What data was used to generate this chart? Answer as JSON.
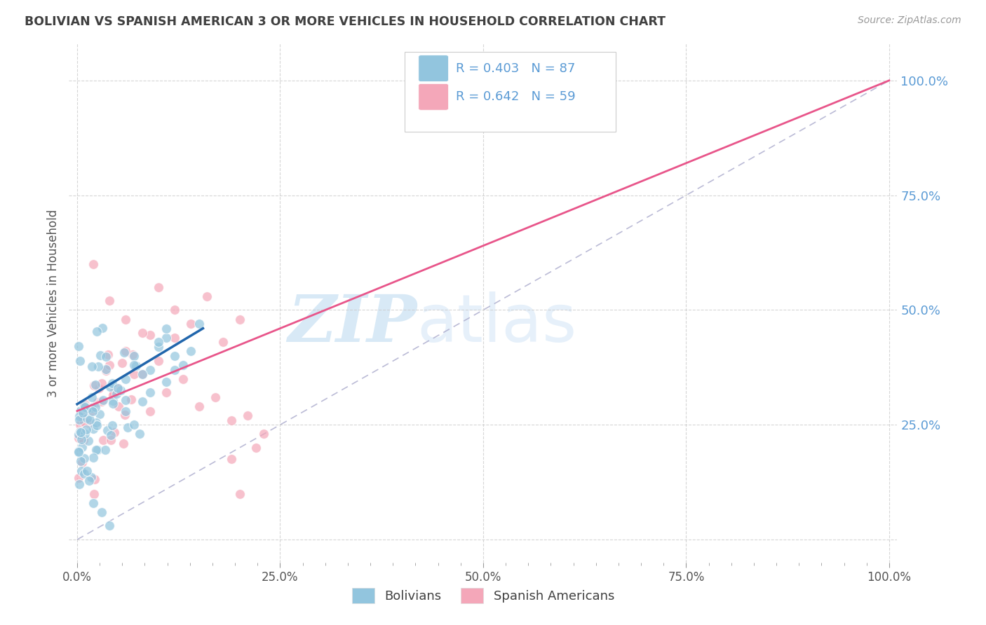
{
  "title": "BOLIVIAN VS SPANISH AMERICAN 3 OR MORE VEHICLES IN HOUSEHOLD CORRELATION CHART",
  "source": "Source: ZipAtlas.com",
  "ylabel": "3 or more Vehicles in Household",
  "xtick_labels": [
    "0.0%",
    "",
    "",
    "",
    "",
    "",
    "",
    "",
    "25.0%",
    "",
    "",
    "",
    "",
    "",
    "",
    "",
    "50.0%",
    "",
    "",
    "",
    "",
    "",
    "",
    "",
    "75.0%",
    "",
    "",
    "",
    "",
    "",
    "",
    "",
    "100.0%"
  ],
  "xtick_vals": [
    0.0,
    0.03125,
    0.0625,
    0.09375,
    0.125,
    0.15625,
    0.1875,
    0.21875,
    0.25,
    0.28125,
    0.3125,
    0.34375,
    0.375,
    0.40625,
    0.4375,
    0.46875,
    0.5,
    0.53125,
    0.5625,
    0.59375,
    0.625,
    0.65625,
    0.6875,
    0.71875,
    0.75,
    0.78125,
    0.8125,
    0.84375,
    0.875,
    0.90625,
    0.9375,
    0.96875,
    1.0
  ],
  "ytick_labels": [
    "",
    "25.0%",
    "50.0%",
    "75.0%",
    "100.0%"
  ],
  "ytick_vals": [
    0.0,
    0.25,
    0.5,
    0.75,
    1.0
  ],
  "legend_labels": [
    "Bolivians",
    "Spanish Americans"
  ],
  "blue_color": "#92c5de",
  "pink_color": "#f4a7b9",
  "blue_line_color": "#2166ac",
  "pink_line_color": "#e8558a",
  "text_color": "#5b9bd5",
  "title_color": "#404040",
  "R_blue": 0.403,
  "N_blue": 87,
  "R_pink": 0.642,
  "N_pink": 59,
  "watermark_zip": "ZIP",
  "watermark_atlas": "atlas",
  "background_color": "#ffffff",
  "grid_color": "#cccccc",
  "pink_line_x0": 0.0,
  "pink_line_y0": 0.28,
  "pink_line_x1": 1.0,
  "pink_line_y1": 1.0,
  "blue_line_x0": 0.0,
  "blue_line_y0": 0.295,
  "blue_line_x1": 0.155,
  "blue_line_y1": 0.46
}
